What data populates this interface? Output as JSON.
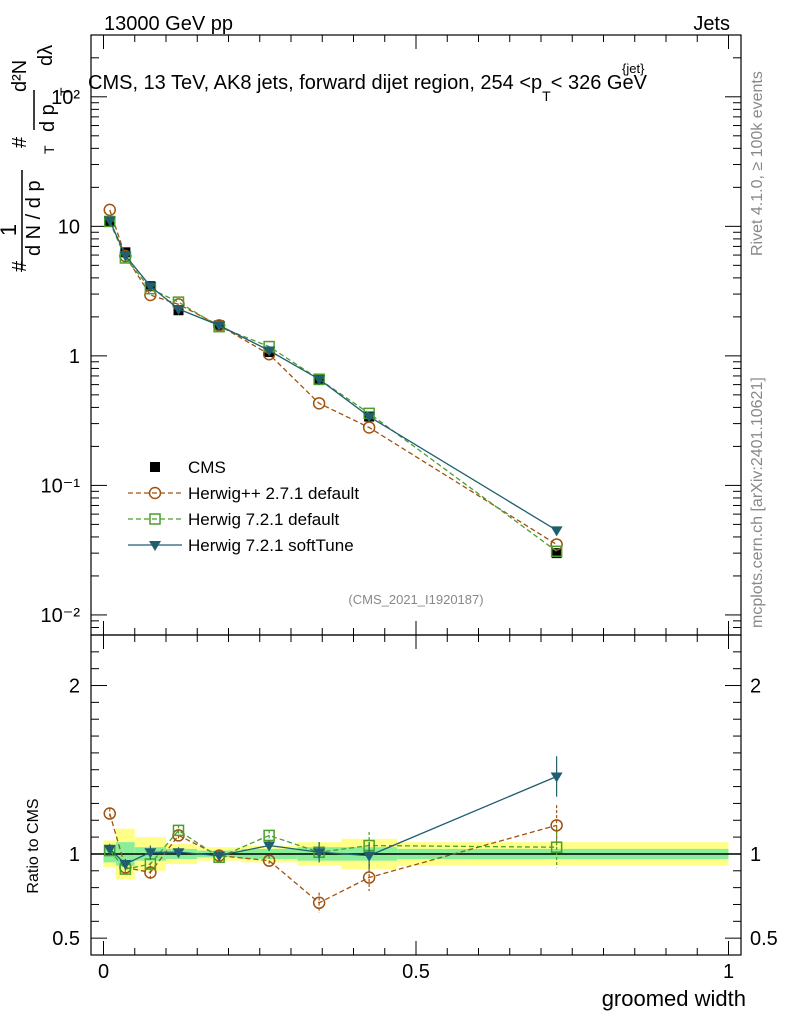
{
  "header": {
    "left": "13000 GeV pp",
    "right": "Jets"
  },
  "side_texts": {
    "rivet": "Rivet 4.1.0, ≥ 100k events",
    "mcplots": "mcplots.cern.ch [arXiv:2401.10621]"
  },
  "chart_data": {
    "type": "line",
    "title": "CMS, 13 TeV, AK8 jets, forward dijet region, 254 < pT jet < 326 GeV",
    "title_main": "CMS, 13 TeV, AK8 jets, forward dijet region, 254 <p",
    "title_sub": "T",
    "title_sup": "{jet}",
    "title_end": "< 326 GeV",
    "analysis_id": "(CMS_2021_I1920187)",
    "xlabel": "groomed width",
    "ylabel": "1/dN/dpT d²N/dpT dλ",
    "ylabel_parts": [
      "#",
      "1",
      "d N / d p",
      "T",
      "#",
      "d p",
      "T",
      "d²N",
      "dλ"
    ],
    "ratio_ylabel": "Ratio to CMS",
    "xlim": [
      -0.02,
      1.02
    ],
    "ylim_log": [
      0.007,
      300
    ],
    "ratio_ylim": [
      0.4,
      2.3
    ],
    "x_ticks": [
      "0",
      "0.5",
      "1"
    ],
    "y_ticks_main": [
      "10⁻²",
      "10⁻¹",
      "1",
      "10",
      "10²"
    ],
    "y_ticks_ratio": [
      "0.5",
      "1",
      "2"
    ],
    "x": [
      0.01,
      0.035,
      0.075,
      0.12,
      0.185,
      0.265,
      0.345,
      0.425,
      0.725
    ],
    "bins": [
      [
        0,
        0.02
      ],
      [
        0.02,
        0.05
      ],
      [
        0.05,
        0.1
      ],
      [
        0.1,
        0.15
      ],
      [
        0.15,
        0.22
      ],
      [
        0.22,
        0.31
      ],
      [
        0.31,
        0.38
      ],
      [
        0.38,
        0.47
      ],
      [
        0.47,
        1.0
      ]
    ],
    "band_inner": [
      0.05,
      0.07,
      0.04,
      0.03,
      0.02,
      0.03,
      0.04,
      0.04,
      0.03
    ],
    "band_outer": [
      0.08,
      0.15,
      0.1,
      0.06,
      0.04,
      0.05,
      0.07,
      0.09,
      0.07
    ],
    "series": [
      {
        "name": "CMS",
        "values": [
          10.8,
          6.3,
          3.45,
          2.25,
          1.72,
          1.07,
          0.65,
          0.34,
          0.03
        ],
        "ratio": [
          1,
          1,
          1,
          1,
          1,
          1,
          1,
          1,
          1
        ],
        "color": "#000000",
        "marker": "square-filled",
        "dashed": false
      },
      {
        "name": "Herwig++ 2.7.1 default",
        "values": [
          13.4,
          5.9,
          2.95,
          2.5,
          1.72,
          1.03,
          0.43,
          0.28,
          0.035
        ],
        "ratio": [
          1.24,
          0.92,
          0.89,
          1.11,
          0.99,
          0.96,
          0.71,
          0.86,
          1.17
        ],
        "err": [
          0.03,
          0.03,
          0.04,
          0.03,
          0.03,
          0.03,
          0.06,
          0.08,
          0.12
        ],
        "color": "#a0520f",
        "marker": "circle-open",
        "dashed": true
      },
      {
        "name": "Herwig 7.2.1 default",
        "values": [
          10.9,
          5.7,
          3.3,
          2.6,
          1.68,
          1.18,
          0.66,
          0.36,
          0.031
        ],
        "ratio": [
          1.02,
          0.91,
          0.94,
          1.14,
          0.98,
          1.11,
          1.01,
          1.05,
          1.04
        ],
        "err": [
          0.03,
          0.03,
          0.04,
          0.03,
          0.03,
          0.03,
          0.06,
          0.08,
          0.12
        ],
        "color": "#4a9e2a",
        "marker": "square-open",
        "dashed": true
      },
      {
        "name": "Herwig 7.2.1 softTune",
        "values": [
          11.1,
          5.95,
          3.45,
          2.3,
          1.72,
          1.1,
          0.66,
          0.34,
          0.045
        ],
        "ratio": [
          1.03,
          0.94,
          1.01,
          1.01,
          0.99,
          1.05,
          1.01,
          0.99,
          1.46
        ],
        "err": [
          0.03,
          0.03,
          0.04,
          0.03,
          0.03,
          0.03,
          0.06,
          0.08,
          0.12
        ],
        "color": "#1f5f6f",
        "marker": "triangle-down-filled",
        "dashed": false
      }
    ],
    "legend_position": "bottom-left"
  }
}
